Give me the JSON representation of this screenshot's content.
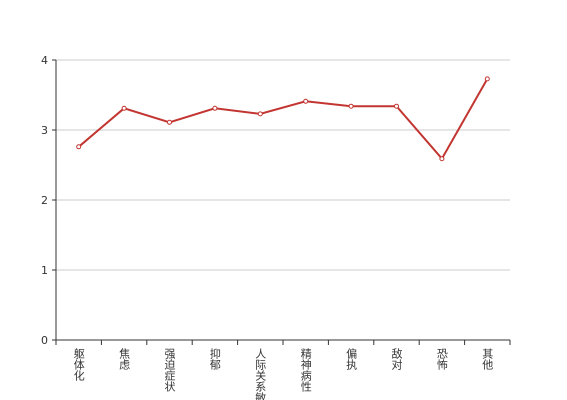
{
  "chart_data": {
    "type": "line",
    "categories": [
      "躯体化",
      "焦虑",
      "强迫症状",
      "抑郁",
      "人际关系敏感",
      "精神病性",
      "偏执",
      "敌对",
      "恐怖",
      "其他"
    ],
    "values": [
      2.76,
      3.31,
      3.11,
      3.31,
      3.23,
      3.41,
      3.34,
      3.34,
      2.59,
      3.73
    ],
    "color": "#c23531",
    "ylim": [
      0,
      4
    ],
    "yticks": [
      0,
      1,
      2,
      3,
      4
    ],
    "grid": true
  }
}
